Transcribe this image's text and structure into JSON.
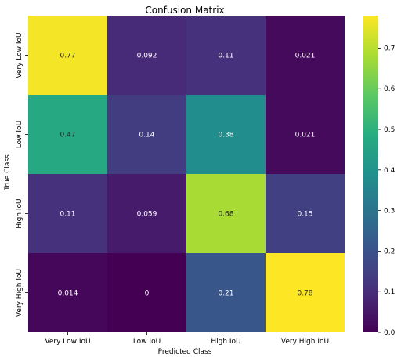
{
  "chart_data": {
    "type": "heatmap",
    "title": "Confusion Matrix",
    "xlabel": "Predicted Class",
    "ylabel": "True Class",
    "x_categories": [
      "Very Low IoU",
      "Low IoU",
      "High IoU",
      "Very High IoU"
    ],
    "y_categories": [
      "Very Low IoU",
      "Low IoU",
      "High IoU",
      "Very High IoU"
    ],
    "values": [
      [
        0.77,
        0.092,
        0.11,
        0.021
      ],
      [
        0.47,
        0.14,
        0.38,
        0.021
      ],
      [
        0.11,
        0.059,
        0.68,
        0.15
      ],
      [
        0.014,
        0,
        0.21,
        0.78
      ]
    ],
    "cell_labels": [
      [
        "0.77",
        "0.092",
        "0.11",
        "0.021"
      ],
      [
        "0.47",
        "0.14",
        "0.38",
        "0.021"
      ],
      [
        "0.11",
        "0.059",
        "0.68",
        "0.15"
      ],
      [
        "0.014",
        "0",
        "0.21",
        "0.78"
      ]
    ],
    "colormap": "viridis",
    "colorbar": {
      "range": [
        0,
        0.78
      ],
      "ticks": [
        0.0,
        0.1,
        0.2,
        0.3,
        0.4,
        0.5,
        0.6,
        0.7
      ],
      "tick_labels": [
        "0.0",
        "0.1",
        "0.2",
        "0.3",
        "0.4",
        "0.5",
        "0.6",
        "0.7"
      ]
    },
    "grid": false
  }
}
